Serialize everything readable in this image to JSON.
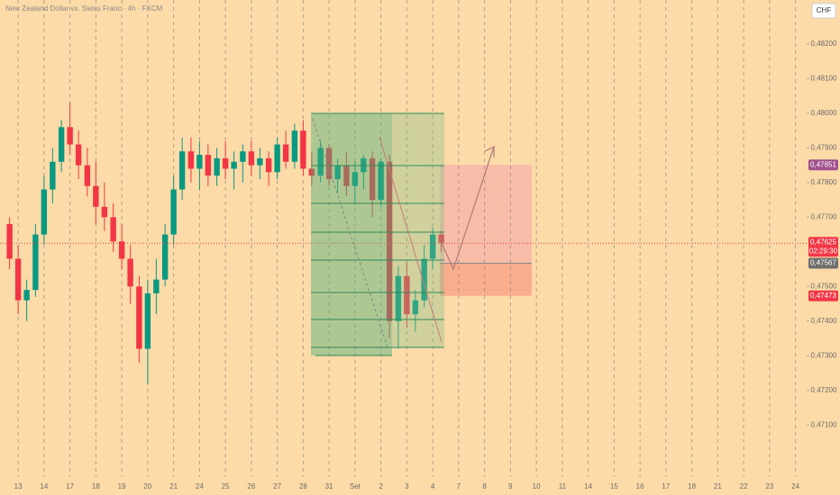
{
  "chart_data": {
    "type": "candlestick",
    "title": "New Zealand Dollar vs. Swiss Franc · 4h · FXCM",
    "currency": "CHF",
    "countdown": "02:29:30",
    "background": "#fddba8",
    "up_color": "#089981",
    "down_color": "#f23645",
    "ylim": [
      0.4695,
      0.48327
    ],
    "yticks": [
      {
        "value": 0.482,
        "label": "0,48200"
      },
      {
        "value": 0.481,
        "label": "0,48100"
      },
      {
        "value": 0.48,
        "label": "0,48000"
      },
      {
        "value": 0.479,
        "label": "0,47900"
      },
      {
        "value": 0.478,
        "label": "0,47800"
      },
      {
        "value": 0.477,
        "label": "0,47700"
      },
      {
        "value": 0.475,
        "label": "0,47500"
      },
      {
        "value": 0.474,
        "label": "0,47400"
      },
      {
        "value": 0.473,
        "label": "0,47300"
      },
      {
        "value": 0.472,
        "label": "0,47200"
      },
      {
        "value": 0.471,
        "label": "0,47100"
      }
    ],
    "xlim": [
      -0.7,
      30.43
    ],
    "xticks": [
      {
        "value": 0,
        "label": "13"
      },
      {
        "value": 1,
        "label": "14"
      },
      {
        "value": 2,
        "label": "17"
      },
      {
        "value": 3,
        "label": "18"
      },
      {
        "value": 4,
        "label": "19"
      },
      {
        "value": 5,
        "label": "20"
      },
      {
        "value": 6,
        "label": "21"
      },
      {
        "value": 7,
        "label": "24"
      },
      {
        "value": 8,
        "label": "25"
      },
      {
        "value": 9,
        "label": "26"
      },
      {
        "value": 10,
        "label": "27"
      },
      {
        "value": 11,
        "label": "28"
      },
      {
        "value": 12,
        "label": "31"
      },
      {
        "value": 13,
        "label": "Set"
      },
      {
        "value": 14,
        "label": "2"
      },
      {
        "value": 15,
        "label": "3"
      },
      {
        "value": 16,
        "label": "4"
      },
      {
        "value": 17,
        "label": "7"
      },
      {
        "value": 18,
        "label": "8"
      },
      {
        "value": 19,
        "label": "9"
      },
      {
        "value": 20,
        "label": "10"
      },
      {
        "value": 21,
        "label": "11"
      },
      {
        "value": 22,
        "label": "14"
      },
      {
        "value": 23,
        "label": "15"
      },
      {
        "value": 24,
        "label": "16"
      },
      {
        "value": 25,
        "label": "17"
      },
      {
        "value": 26,
        "label": "18"
      },
      {
        "value": 27,
        "label": "21"
      },
      {
        "value": 28,
        "label": "22"
      },
      {
        "value": 29,
        "label": "23"
      },
      {
        "value": 30,
        "label": "24"
      }
    ],
    "x": [
      -0.33,
      0,
      0.33,
      0.67,
      1,
      1.33,
      1.67,
      2,
      2.33,
      2.67,
      3,
      3.33,
      3.67,
      4,
      4.33,
      4.67,
      5,
      5.33,
      5.67,
      6,
      6.33,
      6.67,
      7,
      7.33,
      7.67,
      8,
      8.33,
      8.67,
      9,
      9.33,
      9.67,
      10,
      10.33,
      10.67,
      11,
      11.33,
      11.67,
      12,
      12.33,
      12.67,
      13,
      13.33,
      13.67,
      14,
      14.33,
      14.67,
      15,
      15.33,
      15.67,
      16,
      16.33
    ],
    "open": [
      0.4768,
      0.4758,
      0.4746,
      0.4749,
      0.4765,
      0.4778,
      0.4786,
      0.4796,
      0.4791,
      0.4785,
      0.4779,
      0.4773,
      0.477,
      0.4763,
      0.4758,
      0.475,
      0.4732,
      0.4748,
      0.4752,
      0.4765,
      0.4778,
      0.4789,
      0.4784,
      0.4788,
      0.4782,
      0.4787,
      0.4784,
      0.4786,
      0.4789,
      0.4785,
      0.4787,
      0.4783,
      0.4791,
      0.4786,
      0.4795,
      0.4784,
      0.4782,
      0.479,
      0.4781,
      0.4785,
      0.4779,
      0.4783,
      0.4787,
      0.4775,
      0.4786,
      0.474,
      0.4753,
      0.4742,
      0.4746,
      0.4758,
      0.4765
    ],
    "high": [
      0.477,
      0.4762,
      0.4752,
      0.4768,
      0.4782,
      0.479,
      0.4798,
      0.4803,
      0.4795,
      0.479,
      0.4786,
      0.478,
      0.4774,
      0.4768,
      0.4762,
      0.4753,
      0.4752,
      0.4758,
      0.4768,
      0.4782,
      0.4793,
      0.4793,
      0.4792,
      0.4791,
      0.479,
      0.4792,
      0.4789,
      0.4791,
      0.4792,
      0.479,
      0.4789,
      0.4793,
      0.4795,
      0.4797,
      0.4798,
      0.4789,
      0.4792,
      0.4791,
      0.4787,
      0.4789,
      0.4786,
      0.4788,
      0.4789,
      0.4787,
      0.4788,
      0.4756,
      0.4757,
      0.4749,
      0.4762,
      0.4767,
      0.4766
    ],
    "low": [
      0.4755,
      0.4742,
      0.474,
      0.4747,
      0.4762,
      0.4774,
      0.4783,
      0.4788,
      0.4781,
      0.4776,
      0.4768,
      0.4766,
      0.476,
      0.4755,
      0.4745,
      0.4728,
      0.4722,
      0.4742,
      0.475,
      0.4762,
      0.4775,
      0.478,
      0.4778,
      0.4779,
      0.4779,
      0.4781,
      0.4778,
      0.478,
      0.4782,
      0.4781,
      0.4779,
      0.4781,
      0.4784,
      0.4784,
      0.4782,
      0.4779,
      0.478,
      0.4779,
      0.4777,
      0.4776,
      0.4774,
      0.4778,
      0.477,
      0.4773,
      0.4735,
      0.4732,
      0.4738,
      0.4737,
      0.4744,
      0.4755,
      0.476
    ],
    "close": [
      0.4758,
      0.4746,
      0.4749,
      0.4765,
      0.4778,
      0.4786,
      0.4796,
      0.4791,
      0.4785,
      0.4779,
      0.4773,
      0.477,
      0.4763,
      0.4758,
      0.475,
      0.4732,
      0.4748,
      0.4752,
      0.4765,
      0.4778,
      0.4789,
      0.4784,
      0.4788,
      0.4782,
      0.4787,
      0.4784,
      0.4786,
      0.4789,
      0.4785,
      0.4787,
      0.4783,
      0.4791,
      0.4786,
      0.4795,
      0.4784,
      0.4782,
      0.479,
      0.4781,
      0.4785,
      0.4779,
      0.4783,
      0.4787,
      0.4775,
      0.4786,
      0.474,
      0.4753,
      0.4742,
      0.4746,
      0.4758,
      0.4765,
      0.47625
    ],
    "price_labels": [
      {
        "value": 0.47851,
        "label": "0,47851",
        "color": "#a0508c"
      },
      {
        "value": 0.47625,
        "label": "0,47625",
        "color": "#f23645"
      },
      {
        "value": 0.47567,
        "label": "0,47567",
        "color": "#6e6e6e"
      },
      {
        "value": 0.47473,
        "label": "0,47473",
        "color": "#f23645"
      }
    ]
  }
}
